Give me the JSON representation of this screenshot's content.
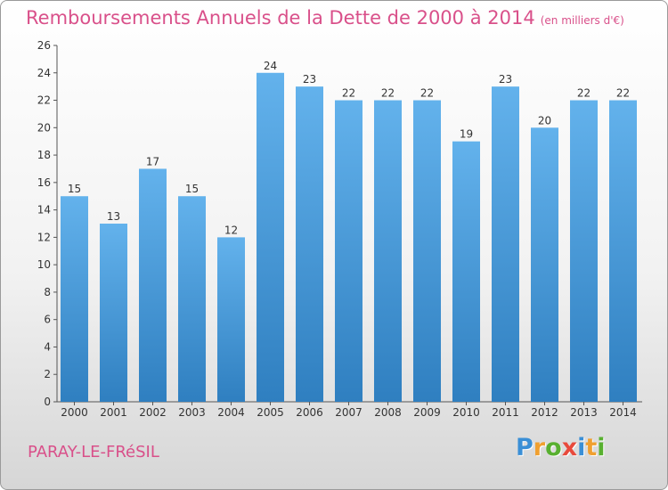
{
  "title": "Remboursements Annuels de la Dette de 2000 à 2014",
  "subtitle": "(en milliers d'€)",
  "place": "PARAY-LE-FRéSIL",
  "logo": {
    "letters": [
      "P",
      "r",
      "o",
      "x",
      "i",
      "t",
      "i"
    ],
    "colors": [
      "#3a8fd6",
      "#f0a030",
      "#58b030",
      "#e84a3c",
      "#3a8fd6",
      "#f0a030",
      "#58b030"
    ]
  },
  "colors": {
    "title": "#d9508a",
    "bar_top": "#63b2ec",
    "bar_bottom": "#2f7fc0"
  },
  "chart_data": {
    "type": "bar",
    "title": "Remboursements Annuels de la Dette de 2000 à 2014",
    "categories": [
      "2000",
      "2001",
      "2002",
      "2003",
      "2004",
      "2005",
      "2006",
      "2007",
      "2008",
      "2009",
      "2010",
      "2011",
      "2012",
      "2013",
      "2014"
    ],
    "values": [
      15,
      13,
      17,
      15,
      12,
      24,
      23,
      22,
      22,
      22,
      19,
      23,
      20,
      22,
      22
    ],
    "ylim": [
      0,
      26
    ],
    "yticks": [
      0,
      2,
      4,
      6,
      8,
      10,
      12,
      14,
      16,
      18,
      20,
      22,
      24,
      26
    ],
    "grid": false,
    "data_labels": true
  }
}
